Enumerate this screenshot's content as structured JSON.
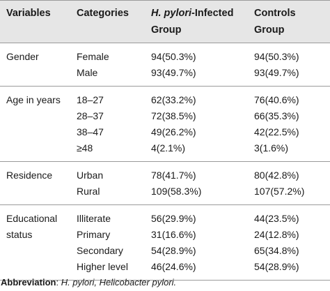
{
  "headers": {
    "variables": "Variables",
    "categories": "Categories",
    "infected_line1_italic": "H. pylori",
    "infected_line1_rest": "-Infected",
    "infected_line2": "Group",
    "controls_line1": "Controls",
    "controls_line2": "Group"
  },
  "rows": [
    {
      "variable_lines": [
        "Gender"
      ],
      "categories": [
        "Female",
        "Male"
      ],
      "infected": [
        "94(50.3%)",
        "93(49.7%)"
      ],
      "controls": [
        "94(50.3%)",
        "93(49.7%)"
      ]
    },
    {
      "variable_lines": [
        "Age in years"
      ],
      "categories": [
        "18–27",
        "28–37",
        "38–47",
        "≥48"
      ],
      "infected": [
        "62(33.2%)",
        "72(38.5%)",
        "49(26.2%)",
        "4(2.1%)"
      ],
      "controls": [
        "76(40.6%)",
        "66(35.3%)",
        "42(22.5%)",
        "3(1.6%)"
      ]
    },
    {
      "variable_lines": [
        "Residence"
      ],
      "categories": [
        "Urban",
        "Rural"
      ],
      "infected": [
        "78(41.7%)",
        "109(58.3%)"
      ],
      "controls": [
        "80(42.8%)",
        "107(57.2%)"
      ]
    },
    {
      "variable_lines": [
        "Educational",
        "status"
      ],
      "categories": [
        "Illiterate",
        "Primary",
        "Secondary",
        "Higher level"
      ],
      "infected": [
        "56(29.9%)",
        "31(16.6%)",
        "54(28.9%)",
        "46(24.6%)"
      ],
      "controls": [
        "44(23.5%)",
        "24(12.8%)",
        "65(34.8%)",
        "54(28.9%)"
      ]
    }
  ],
  "footnote": {
    "label": "Abbreviation",
    "sep": ": ",
    "text": "H. pylori, Helicobacter pylori."
  }
}
